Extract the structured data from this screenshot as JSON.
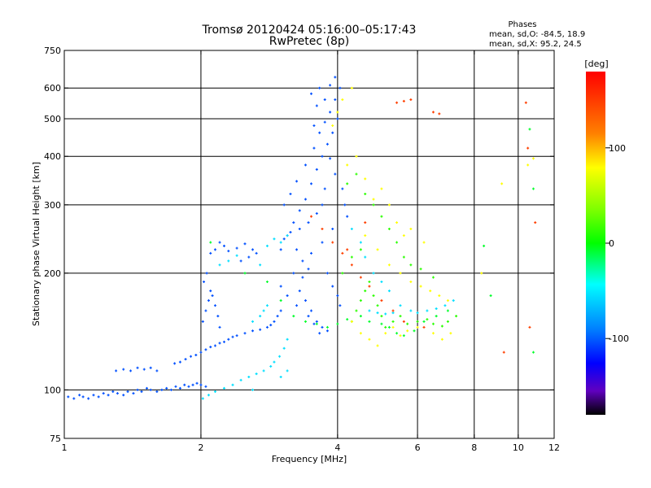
{
  "chart_data": {
    "type": "scatter",
    "title": "Tromsø 20120424 05:16:00–05:17:43",
    "subtitle": "RwPretec (8p)",
    "xlabel": "Frequency [MHz]",
    "ylabel": "Stationary phase Virtual Height [km]",
    "x_scale": "log",
    "y_scale": "log",
    "xlim": [
      1,
      12
    ],
    "ylim": [
      75,
      750
    ],
    "x_ticks": [
      1,
      2,
      4,
      6,
      8,
      10,
      12
    ],
    "x_tick_labels": [
      "1",
      "2",
      "4",
      "6",
      "8",
      "10",
      "12"
    ],
    "y_ticks": [
      75,
      100,
      200,
      300,
      400,
      500,
      600,
      750
    ],
    "y_tick_labels": [
      "75",
      "100",
      "200",
      "300",
      "400",
      "500",
      "600",
      "750"
    ],
    "grid": true,
    "grid_x": [
      2,
      4,
      6,
      8,
      10
    ],
    "grid_y": [
      100,
      200,
      300,
      400,
      500,
      600
    ],
    "phase_info": {
      "heading": "Phases",
      "line1": "mean, sd,O: -84.5, 18.9",
      "line2": "mean, sd,X:  95.2, 24.5"
    },
    "colorbar": {
      "label": "[deg]",
      "range": [
        -180,
        180
      ],
      "tick_values": [
        100,
        0,
        -100
      ],
      "tick_labels": [
        "100",
        "0",
        "-100"
      ]
    },
    "series": [
      {
        "phase": -85,
        "points": [
          [
            1.02,
            96
          ],
          [
            1.05,
            95
          ],
          [
            1.08,
            97
          ],
          [
            1.1,
            96
          ],
          [
            1.13,
            95
          ],
          [
            1.16,
            97
          ],
          [
            1.19,
            96
          ],
          [
            1.22,
            98
          ],
          [
            1.25,
            97
          ],
          [
            1.28,
            99
          ],
          [
            1.31,
            98
          ],
          [
            1.35,
            97
          ],
          [
            1.38,
            99
          ],
          [
            1.42,
            98
          ],
          [
            1.45,
            100
          ],
          [
            1.48,
            99
          ],
          [
            1.52,
            101
          ],
          [
            1.55,
            100
          ],
          [
            1.6,
            99
          ],
          [
            1.64,
            100
          ],
          [
            1.68,
            101
          ],
          [
            1.72,
            100
          ],
          [
            1.76,
            102
          ],
          [
            1.8,
            101
          ],
          [
            1.84,
            103
          ],
          [
            1.88,
            102
          ],
          [
            1.92,
            103
          ],
          [
            1.96,
            104
          ],
          [
            2.0,
            103
          ],
          [
            2.05,
            102
          ],
          [
            1.3,
            112
          ],
          [
            1.35,
            113
          ],
          [
            1.4,
            112
          ],
          [
            1.45,
            114
          ],
          [
            1.5,
            113
          ],
          [
            1.55,
            114
          ],
          [
            1.6,
            112
          ],
          [
            1.75,
            117
          ],
          [
            1.8,
            118
          ],
          [
            1.85,
            120
          ],
          [
            1.9,
            122
          ],
          [
            1.95,
            123
          ],
          [
            2.0,
            125
          ],
          [
            2.05,
            127
          ],
          [
            2.1,
            129
          ],
          [
            2.15,
            130
          ],
          [
            2.2,
            132
          ],
          [
            2.25,
            133
          ],
          [
            2.3,
            135
          ],
          [
            2.35,
            137
          ],
          [
            2.4,
            138
          ],
          [
            2.5,
            140
          ],
          [
            2.6,
            142
          ],
          [
            2.7,
            143
          ],
          [
            2.8,
            145
          ],
          [
            2.85,
            147
          ],
          [
            2.9,
            150
          ],
          [
            2.95,
            155
          ],
          [
            3.0,
            160
          ],
          [
            2.02,
            150
          ],
          [
            2.05,
            160
          ],
          [
            2.08,
            170
          ],
          [
            2.1,
            180
          ],
          [
            2.03,
            190
          ],
          [
            2.06,
            200
          ],
          [
            2.12,
            175
          ],
          [
            2.15,
            165
          ],
          [
            2.18,
            155
          ],
          [
            2.2,
            145
          ],
          [
            2.1,
            225
          ],
          [
            2.15,
            230
          ],
          [
            2.2,
            240
          ],
          [
            2.25,
            235
          ],
          [
            2.3,
            228
          ],
          [
            2.4,
            232
          ],
          [
            2.5,
            238
          ],
          [
            2.6,
            230
          ],
          [
            2.55,
            220
          ],
          [
            2.45,
            215
          ],
          [
            2.65,
            225
          ],
          [
            3.0,
            230
          ],
          [
            3.1,
            250
          ],
          [
            3.2,
            270
          ],
          [
            3.3,
            290
          ],
          [
            3.4,
            310
          ],
          [
            3.5,
            340
          ],
          [
            3.6,
            370
          ],
          [
            3.7,
            400
          ],
          [
            3.8,
            430
          ],
          [
            3.9,
            460
          ],
          [
            4.0,
            500
          ],
          [
            3.75,
            560
          ],
          [
            3.85,
            610
          ],
          [
            3.95,
            640
          ],
          [
            3.2,
            200
          ],
          [
            3.3,
            180
          ],
          [
            3.4,
            170
          ],
          [
            3.5,
            160
          ],
          [
            3.6,
            150
          ],
          [
            3.7,
            145
          ],
          [
            3.8,
            142
          ],
          [
            3.0,
            185
          ],
          [
            3.1,
            175
          ],
          [
            3.25,
            165
          ],
          [
            3.45,
            155
          ],
          [
            3.55,
            148
          ],
          [
            3.65,
            140
          ],
          [
            3.35,
            215
          ],
          [
            3.5,
            225
          ],
          [
            3.7,
            240
          ],
          [
            3.9,
            260
          ],
          [
            3.05,
            300
          ],
          [
            3.15,
            320
          ],
          [
            3.25,
            345
          ],
          [
            3.4,
            380
          ],
          [
            3.55,
            420
          ],
          [
            3.65,
            460
          ],
          [
            3.75,
            490
          ],
          [
            3.85,
            520
          ],
          [
            3.6,
            540
          ],
          [
            3.5,
            580
          ],
          [
            3.45,
            270
          ],
          [
            3.3,
            260
          ],
          [
            3.15,
            255
          ],
          [
            3.05,
            245
          ],
          [
            3.8,
            200
          ],
          [
            3.9,
            185
          ],
          [
            4.0,
            175
          ],
          [
            4.05,
            165
          ],
          [
            4.1,
            330
          ],
          [
            4.15,
            300
          ],
          [
            4.2,
            280
          ],
          [
            3.95,
            360
          ],
          [
            3.85,
            395
          ],
          [
            3.7,
            300
          ],
          [
            3.6,
            285
          ],
          [
            3.75,
            330
          ],
          [
            3.25,
            230
          ],
          [
            3.35,
            195
          ],
          [
            3.45,
            205
          ],
          [
            3.95,
            560
          ],
          [
            4.05,
            600
          ],
          [
            3.65,
            600
          ],
          [
            3.55,
            480
          ]
        ]
      },
      {
        "phase": -40,
        "points": [
          [
            2.02,
            95
          ],
          [
            2.08,
            97
          ],
          [
            2.15,
            99
          ],
          [
            2.25,
            101
          ],
          [
            2.35,
            103
          ],
          [
            2.45,
            106
          ],
          [
            2.55,
            108
          ],
          [
            2.65,
            110
          ],
          [
            2.75,
            112
          ],
          [
            2.85,
            115
          ],
          [
            2.9,
            118
          ],
          [
            2.98,
            122
          ],
          [
            3.05,
            128
          ],
          [
            3.1,
            135
          ],
          [
            2.2,
            210
          ],
          [
            2.3,
            215
          ],
          [
            2.4,
            222
          ],
          [
            2.7,
            210
          ],
          [
            2.8,
            235
          ],
          [
            2.9,
            245
          ],
          [
            2.6,
            150
          ],
          [
            2.7,
            155
          ],
          [
            2.75,
            160
          ],
          [
            2.8,
            165
          ],
          [
            3.0,
            240
          ],
          [
            3.1,
            250
          ],
          [
            4.3,
            260
          ],
          [
            4.5,
            240
          ],
          [
            4.6,
            220
          ],
          [
            4.8,
            200
          ],
          [
            5.0,
            190
          ],
          [
            5.2,
            180
          ],
          [
            5.5,
            165
          ],
          [
            5.8,
            160
          ],
          [
            6.0,
            158
          ],
          [
            6.3,
            160
          ],
          [
            6.6,
            162
          ],
          [
            6.9,
            165
          ],
          [
            7.2,
            170
          ],
          [
            4.7,
            160
          ],
          [
            4.9,
            158
          ],
          [
            5.1,
            157
          ],
          [
            5.3,
            158
          ],
          [
            3.0,
            108
          ],
          [
            3.1,
            112
          ],
          [
            2.6,
            100
          ]
        ]
      },
      {
        "phase": 20,
        "points": [
          [
            4.3,
            150
          ],
          [
            4.4,
            160
          ],
          [
            4.5,
            170
          ],
          [
            4.6,
            180
          ],
          [
            4.7,
            190
          ],
          [
            4.8,
            175
          ],
          [
            4.9,
            165
          ],
          [
            5.0,
            155
          ],
          [
            5.1,
            145
          ],
          [
            5.3,
            150
          ],
          [
            5.5,
            155
          ],
          [
            5.7,
            148
          ],
          [
            6.0,
            150
          ],
          [
            6.3,
            152
          ],
          [
            6.5,
            148
          ],
          [
            6.8,
            146
          ],
          [
            7.0,
            150
          ],
          [
            7.3,
            155
          ],
          [
            4.2,
            340
          ],
          [
            4.4,
            360
          ],
          [
            4.6,
            320
          ],
          [
            4.8,
            300
          ],
          [
            5.0,
            280
          ],
          [
            5.2,
            260
          ],
          [
            5.4,
            240
          ],
          [
            5.6,
            220
          ],
          [
            5.8,
            210
          ],
          [
            6.1,
            205
          ],
          [
            6.5,
            195
          ],
          [
            4.1,
            200
          ],
          [
            4.3,
            220
          ],
          [
            4.5,
            230
          ]
        ]
      },
      {
        "phase": 100,
        "points": [
          [
            4.3,
            150
          ],
          [
            4.5,
            140
          ],
          [
            4.7,
            135
          ],
          [
            4.9,
            130
          ],
          [
            5.1,
            140
          ],
          [
            5.3,
            145
          ],
          [
            5.5,
            138
          ],
          [
            5.7,
            142
          ],
          [
            6.0,
            145
          ],
          [
            6.5,
            140
          ],
          [
            6.8,
            135
          ],
          [
            7.1,
            140
          ],
          [
            4.2,
            380
          ],
          [
            4.4,
            400
          ],
          [
            4.6,
            350
          ],
          [
            4.8,
            310
          ],
          [
            5.0,
            330
          ],
          [
            5.2,
            300
          ],
          [
            5.4,
            270
          ],
          [
            5.6,
            250
          ],
          [
            5.8,
            260
          ],
          [
            6.2,
            240
          ],
          [
            4.1,
            560
          ],
          [
            4.3,
            600
          ],
          [
            4.0,
            520
          ],
          [
            3.9,
            480
          ],
          [
            4.6,
            250
          ],
          [
            4.9,
            230
          ],
          [
            5.2,
            210
          ],
          [
            5.5,
            200
          ],
          [
            5.8,
            190
          ],
          [
            6.1,
            185
          ],
          [
            6.4,
            180
          ],
          [
            6.7,
            175
          ],
          [
            7.0,
            170
          ],
          [
            9.2,
            340
          ],
          [
            10.5,
            380
          ],
          [
            10.8,
            395
          ],
          [
            8.3,
            200
          ]
        ]
      },
      {
        "phase": 150,
        "points": [
          [
            3.5,
            280
          ],
          [
            3.7,
            260
          ],
          [
            3.9,
            240
          ],
          [
            4.1,
            225
          ],
          [
            4.3,
            210
          ],
          [
            4.5,
            195
          ],
          [
            4.7,
            185
          ],
          [
            5.0,
            170
          ],
          [
            5.3,
            160
          ],
          [
            5.6,
            150
          ],
          [
            6.2,
            145
          ],
          [
            6.5,
            520
          ],
          [
            5.8,
            560
          ],
          [
            5.6,
            555
          ],
          [
            10.5,
            420
          ],
          [
            10.9,
            270
          ],
          [
            10.6,
            145
          ],
          [
            9.3,
            125
          ],
          [
            5.4,
            550
          ],
          [
            6.7,
            515
          ],
          [
            4.2,
            230
          ],
          [
            4.6,
            270
          ],
          [
            10.4,
            550
          ]
        ]
      },
      {
        "phase": -5,
        "points": [
          [
            3.0,
            170
          ],
          [
            3.2,
            155
          ],
          [
            3.4,
            150
          ],
          [
            3.6,
            148
          ],
          [
            3.8,
            145
          ],
          [
            4.0,
            148
          ],
          [
            4.2,
            152
          ],
          [
            4.5,
            155
          ],
          [
            4.7,
            150
          ],
          [
            5.0,
            148
          ],
          [
            5.2,
            145
          ],
          [
            5.4,
            140
          ],
          [
            5.6,
            138
          ],
          [
            5.9,
            142
          ],
          [
            6.2,
            150
          ],
          [
            6.6,
            155
          ],
          [
            7.0,
            160
          ],
          [
            2.1,
            240
          ],
          [
            2.5,
            200
          ],
          [
            2.8,
            190
          ],
          [
            10.6,
            470
          ],
          [
            10.8,
            330
          ],
          [
            10.8,
            125
          ],
          [
            8.4,
            235
          ],
          [
            8.7,
            175
          ]
        ]
      }
    ]
  }
}
